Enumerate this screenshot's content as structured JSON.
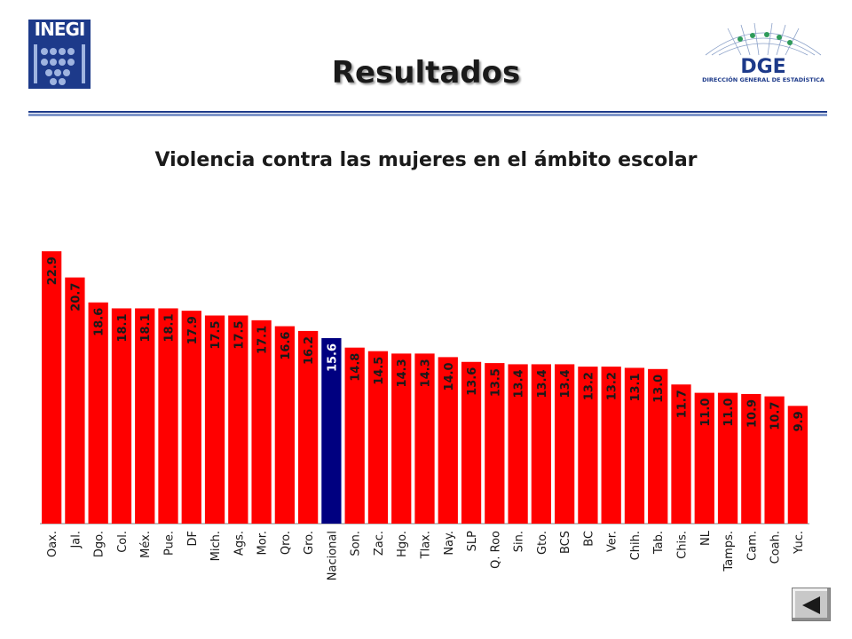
{
  "header": {
    "left_logo_text": "INEGI",
    "right_logo_text": "DGE",
    "right_logo_subtitle": "DIRECCIÓN GENERAL DE ESTADÍSTICA",
    "title": "Resultados"
  },
  "colors": {
    "bar": "#ff0000",
    "highlight_bar": "#000080",
    "rule_dark": "#1d3a8a",
    "rule_light": "#7f96c9"
  },
  "nav": {
    "icon": "back-arrow-icon"
  },
  "chart_data": {
    "type": "bar",
    "title": "Violencia contra las mujeres en el ámbito escolar",
    "xlabel": "",
    "ylabel": "",
    "ylim": [
      0,
      24
    ],
    "grid": false,
    "legend": "none",
    "highlight_category": "Nacional",
    "categories": [
      "Oax.",
      "Jal.",
      "Dgo.",
      "Col.",
      "Méx.",
      "Pue.",
      "DF",
      "Mich.",
      "Ags.",
      "Mor.",
      "Qro.",
      "Gro.",
      "Nacional",
      "Son.",
      "Zac.",
      "Hgo.",
      "Tlax.",
      "Nay.",
      "SLP",
      "Q. Roo",
      "Sin.",
      "Gto.",
      "BCS",
      "BC",
      "Ver.",
      "Chih.",
      "Tab.",
      "Chis.",
      "NL",
      "Tamps.",
      "Cam.",
      "Coah.",
      "Yuc."
    ],
    "values": [
      22.9,
      20.7,
      18.6,
      18.1,
      18.1,
      18.1,
      17.9,
      17.5,
      17.5,
      17.1,
      16.6,
      16.2,
      15.6,
      14.8,
      14.5,
      14.3,
      14.3,
      14.0,
      13.6,
      13.5,
      13.4,
      13.4,
      13.4,
      13.2,
      13.2,
      13.1,
      13.0,
      11.7,
      11.0,
      11.0,
      10.9,
      10.7,
      9.9
    ],
    "data_labels": [
      "22.9",
      "20.7",
      "18.6",
      "18.1",
      "18.1",
      "18.1",
      "17.9",
      "17.5",
      "17.5",
      "17.1",
      "16.6",
      "16.2",
      "15.6",
      "14.8",
      "14.5",
      "14.3",
      "14.3",
      "14.0",
      "13.6",
      "13.5",
      "13.4",
      "13.4",
      "13.4",
      "13.2",
      "13.2",
      "13.1",
      "13.0",
      "11.7",
      "11.0",
      "11.0",
      "10.9",
      "10.7",
      "9.9"
    ]
  }
}
